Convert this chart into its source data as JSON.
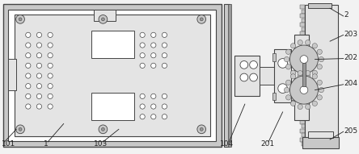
{
  "bg_color": "#f2f2f2",
  "lc": "#444444",
  "white": "#ffffff",
  "light_gray": "#e4e4e4",
  "mid_gray": "#c8c8c8",
  "dark_gray": "#999999",
  "label_fontsize": 6.5,
  "ann_color": "#222222",
  "figsize": [
    4.44,
    1.91
  ],
  "dpi": 100
}
